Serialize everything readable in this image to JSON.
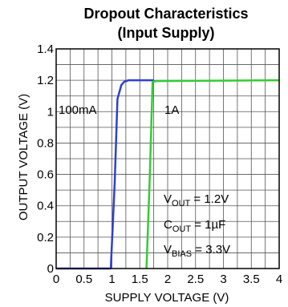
{
  "chart_data": {
    "type": "line",
    "title": "Dropout Characteristics",
    "subtitle": "(Input Supply)",
    "xlabel": "SUPPLY VOLTAGE (V)",
    "ylabel": "OUTPUT VOLTAGE (V)",
    "xlim": [
      0,
      4
    ],
    "ylim": [
      0,
      1.4
    ],
    "x_ticks": [
      "0",
      "0.5",
      "1",
      "1.5",
      "2",
      "2.5",
      "3",
      "3.5",
      "4"
    ],
    "y_ticks": [
      "0",
      "0.2",
      "0.4",
      "0.6",
      "0.8",
      "1",
      "1.2",
      "1.4"
    ],
    "grid": true,
    "series": [
      {
        "name": "100mA",
        "color": "#2f3fd0",
        "points": [
          [
            0,
            0
          ],
          [
            0.98,
            0
          ],
          [
            1.05,
            0.55
          ],
          [
            1.1,
            1.08
          ],
          [
            1.17,
            1.17
          ],
          [
            1.22,
            1.19
          ],
          [
            1.3,
            1.2
          ],
          [
            1.75,
            1.2
          ]
        ]
      },
      {
        "name": "1A",
        "color": "#33cc33",
        "points": [
          [
            1.62,
            0
          ],
          [
            1.68,
            0.6
          ],
          [
            1.73,
            1.19
          ],
          [
            1.8,
            1.195
          ],
          [
            4.0,
            1.2
          ]
        ]
      }
    ],
    "annotations": {
      "vout": {
        "main": "V",
        "sub": "OUT",
        "rest": " = 1.2V"
      },
      "cout": {
        "main": "C",
        "sub": "OUT",
        "rest": " = 1µF"
      },
      "vbias": {
        "main": "V",
        "sub": "BIAS",
        "rest": " = 3.3V"
      }
    }
  }
}
